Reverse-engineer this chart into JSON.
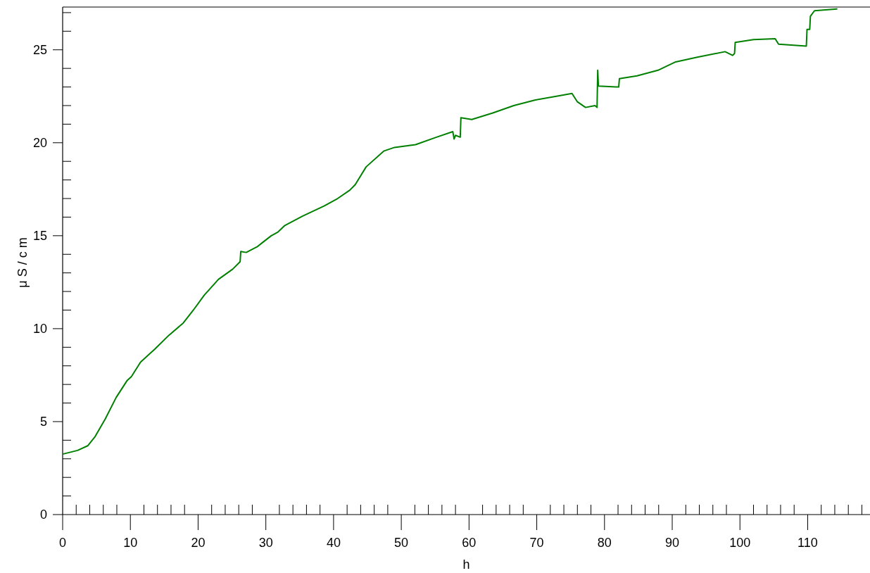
{
  "chart_data": {
    "type": "line",
    "xlabel": "h",
    "ylabel": "μS/cm",
    "xlim": [
      0,
      119.2
    ],
    "ylim": [
      0,
      27.3
    ],
    "xticks": [
      0,
      {
        "value": 2,
        "label": null
      },
      {
        "value": 4,
        "label": null
      },
      {
        "value": 6,
        "label": null
      },
      {
        "value": 8,
        "label": null
      },
      10,
      {
        "value": 12,
        "label": null
      },
      {
        "value": 14,
        "label": null
      },
      {
        "value": 16,
        "label": null
      },
      {
        "value": 18,
        "label": null
      },
      20,
      {
        "value": 22,
        "label": null
      },
      {
        "value": 24,
        "label": null
      },
      {
        "value": 26,
        "label": null
      },
      {
        "value": 28,
        "label": null
      },
      30,
      {
        "value": 32,
        "label": null
      },
      {
        "value": 34,
        "label": null
      },
      {
        "value": 36,
        "label": null
      },
      {
        "value": 38,
        "label": null
      },
      40,
      {
        "value": 42,
        "label": null
      },
      {
        "value": 44,
        "label": null
      },
      {
        "value": 46,
        "label": null
      },
      {
        "value": 48,
        "label": null
      },
      50,
      {
        "value": 52,
        "label": null
      },
      {
        "value": 54,
        "label": null
      },
      {
        "value": 56,
        "label": null
      },
      {
        "value": 58,
        "label": null
      },
      60,
      {
        "value": 62,
        "label": null
      },
      {
        "value": 64,
        "label": null
      },
      {
        "value": 66,
        "label": null
      },
      {
        "value": 68,
        "label": null
      },
      70,
      {
        "value": 72,
        "label": null
      },
      {
        "value": 74,
        "label": null
      },
      {
        "value": 76,
        "label": null
      },
      {
        "value": 78,
        "label": null
      },
      80,
      {
        "value": 82,
        "label": null
      },
      {
        "value": 84,
        "label": null
      },
      {
        "value": 86,
        "label": null
      },
      {
        "value": 88,
        "label": null
      },
      90,
      {
        "value": 92,
        "label": null
      },
      {
        "value": 94,
        "label": null
      },
      {
        "value": 96,
        "label": null
      },
      {
        "value": 98,
        "label": null
      },
      100,
      {
        "value": 102,
        "label": null
      },
      {
        "value": 104,
        "label": null
      },
      {
        "value": 106,
        "label": null
      },
      {
        "value": 108,
        "label": null
      },
      110,
      {
        "value": 112,
        "label": null
      },
      {
        "value": 114,
        "label": null
      },
      {
        "value": 116,
        "label": null
      },
      {
        "value": 118,
        "label": null
      }
    ],
    "yticks": [
      0,
      {
        "value": 1,
        "label": null
      },
      {
        "value": 2,
        "label": null
      },
      {
        "value": 3,
        "label": null
      },
      {
        "value": 4,
        "label": null
      },
      5,
      {
        "value": 6,
        "label": null
      },
      {
        "value": 7,
        "label": null
      },
      {
        "value": 8,
        "label": null
      },
      {
        "value": 9,
        "label": null
      },
      10,
      {
        "value": 11,
        "label": null
      },
      {
        "value": 12,
        "label": null
      },
      {
        "value": 13,
        "label": null
      },
      {
        "value": 14,
        "label": null
      },
      15,
      {
        "value": 16,
        "label": null
      },
      {
        "value": 17,
        "label": null
      },
      {
        "value": 18,
        "label": null
      },
      {
        "value": 19,
        "label": null
      },
      20,
      {
        "value": 21,
        "label": null
      },
      {
        "value": 22,
        "label": null
      },
      {
        "value": 23,
        "label": null
      },
      {
        "value": 24,
        "label": null
      },
      25,
      {
        "value": 26,
        "label": null
      },
      {
        "value": 27,
        "label": null
      }
    ],
    "grid": false,
    "marker": "none",
    "line_style": "solid",
    "series": [
      {
        "color": "#008000",
        "x": [
          0.1,
          2.2,
          3.7,
          4.8,
          6.3,
          7.9,
          9.5,
          10.1,
          10.2,
          11.5,
          13.6,
          15.7,
          17.8,
          19.3,
          20.9,
          23.0,
          25.1,
          26.2,
          26.3,
          27.1,
          28.7,
          29.4,
          30.8,
          31.8,
          32.8,
          35.4,
          38.6,
          40.6,
          42.4,
          43.2,
          44.8,
          47.4,
          49.0,
          52.1,
          55.2,
          57.6,
          57.8,
          58.0,
          58.7,
          58.8,
          60.4,
          63.5,
          66.6,
          69.8,
          72.9,
          75.2,
          76.0,
          77.2,
          78.6,
          78.9,
          79.0,
          79.1,
          81.7,
          82.1,
          82.2,
          84.8,
          87.9,
          90.5,
          93.7,
          97.8,
          98.9,
          99.2,
          99.3,
          102.0,
          105.2,
          105.7,
          109.8,
          109.9,
          110.3,
          110.4,
          111.0,
          114.3
        ],
        "values": [
          3.26,
          3.45,
          3.7,
          4.2,
          5.15,
          6.3,
          7.2,
          7.4,
          7.45,
          8.2,
          8.9,
          9.65,
          10.3,
          11.0,
          11.8,
          12.65,
          13.2,
          13.6,
          14.15,
          14.1,
          14.4,
          14.6,
          15.0,
          15.2,
          15.55,
          16.05,
          16.6,
          17.0,
          17.45,
          17.75,
          18.7,
          19.55,
          19.75,
          19.9,
          20.3,
          20.6,
          20.2,
          20.4,
          20.3,
          21.35,
          21.25,
          21.6,
          22.0,
          22.3,
          22.5,
          22.65,
          22.2,
          21.9,
          22.0,
          21.9,
          23.9,
          23.05,
          23.0,
          23.0,
          23.45,
          23.6,
          23.9,
          24.35,
          24.6,
          24.9,
          24.7,
          24.8,
          25.4,
          25.55,
          25.6,
          25.3,
          25.2,
          26.1,
          26.1,
          26.8,
          27.1,
          27.2
        ]
      }
    ]
  }
}
